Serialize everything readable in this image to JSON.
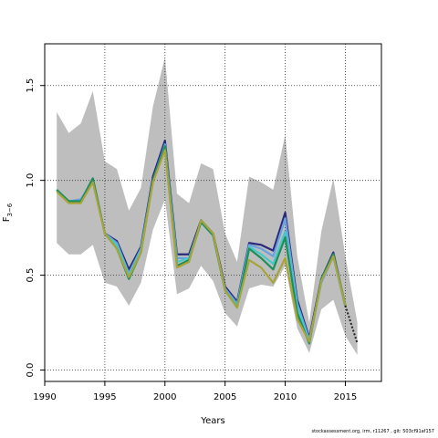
{
  "chart_data": {
    "type": "line",
    "title": "",
    "xlabel": "Years",
    "ylabel": "F",
    "ylabel_sub": "3−6",
    "xlim": [
      1990,
      2018
    ],
    "ylim": [
      -0.06,
      1.72
    ],
    "xticks": [
      1990,
      1995,
      2000,
      2005,
      2010,
      2015
    ],
    "yticks": [
      0.0,
      0.5,
      1.0,
      1.5
    ],
    "ytick_labels": [
      "0.0",
      "0.5",
      "1.0",
      "1.5"
    ],
    "grid": "dotted at 1995, 2000, 2005, 2010, 2015 and 0.0, 0.5, 1.0, 1.5",
    "confidence_band": {
      "x": [
        1991,
        1992,
        1993,
        1994,
        1995,
        1996,
        1997,
        1998,
        1999,
        2000,
        2001,
        2002,
        2003,
        2004,
        2005,
        2006,
        2007,
        2008,
        2009,
        2010,
        2011,
        2012,
        2013,
        2014,
        2015,
        2016
      ],
      "upper": [
        1.36,
        1.25,
        1.3,
        1.47,
        1.1,
        1.06,
        0.84,
        0.96,
        1.39,
        1.65,
        0.93,
        0.88,
        1.09,
        1.06,
        0.72,
        0.57,
        1.02,
        0.99,
        0.95,
        1.24,
        0.6,
        0.25,
        0.73,
        1.01,
        0.6,
        0.25
      ],
      "lower": [
        0.67,
        0.61,
        0.61,
        0.66,
        0.46,
        0.44,
        0.34,
        0.46,
        0.74,
        0.9,
        0.4,
        0.43,
        0.55,
        0.47,
        0.3,
        0.23,
        0.43,
        0.45,
        0.44,
        0.55,
        0.22,
        0.09,
        0.32,
        0.37,
        0.18,
        0.08
      ],
      "color": "#bebebe"
    },
    "series": [
      {
        "color": "#2b2a7a",
        "x": [
          1991,
          1992,
          1993,
          1994,
          1995,
          1996,
          1997,
          1998,
          1999,
          2000,
          2001,
          2002,
          2003,
          2004,
          2005,
          2006,
          2007,
          2008,
          2009,
          2010,
          2011,
          2012,
          2013,
          2014,
          2015
        ],
        "values": [
          0.95,
          0.89,
          0.89,
          1.01,
          0.72,
          0.68,
          0.53,
          0.65,
          1.02,
          1.21,
          0.61,
          0.61,
          0.79,
          0.72,
          0.44,
          0.36,
          0.67,
          0.66,
          0.63,
          0.83,
          0.37,
          0.17,
          0.48,
          0.62,
          0.34
        ]
      },
      {
        "color": "#6a9fe0",
        "x": [
          1991,
          1992,
          1993,
          1994,
          1995,
          1996,
          1997,
          1998,
          1999,
          2000,
          2001,
          2002,
          2003,
          2004,
          2005,
          2006,
          2007,
          2008,
          2009,
          2010,
          2011,
          2012,
          2013,
          2014,
          2015
        ],
        "values": [
          0.95,
          0.89,
          0.9,
          1.0,
          0.72,
          0.67,
          0.51,
          0.64,
          1.0,
          1.19,
          0.59,
          0.59,
          0.78,
          0.71,
          0.43,
          0.35,
          0.66,
          0.64,
          0.6,
          0.8,
          0.35,
          0.16,
          0.46,
          0.6,
          0.33
        ]
      },
      {
        "color": "#48c9c9",
        "x": [
          1991,
          1992,
          1993,
          1994,
          1995,
          1996,
          1997,
          1998,
          1999,
          2000,
          2001,
          2002,
          2003,
          2004,
          2005,
          2006,
          2007,
          2008,
          2009,
          2010,
          2011,
          2012,
          2013,
          2014,
          2015
        ],
        "values": [
          0.95,
          0.89,
          0.89,
          1.0,
          0.72,
          0.66,
          0.5,
          0.63,
          1.0,
          1.18,
          0.57,
          0.59,
          0.78,
          0.71,
          0.42,
          0.34,
          0.65,
          0.61,
          0.56,
          0.73,
          0.33,
          0.15,
          0.47,
          0.61,
          0.34
        ]
      },
      {
        "color": "#1e8e5a",
        "x": [
          1991,
          1992,
          1993,
          1994,
          1995,
          1996,
          1997,
          1998,
          1999,
          2000,
          2001,
          2002,
          2003,
          2004,
          2005,
          2006,
          2007,
          2008,
          2009,
          2010,
          2011,
          2012,
          2013,
          2014,
          2015
        ],
        "values": [
          0.95,
          0.89,
          0.89,
          1.01,
          0.72,
          0.64,
          0.48,
          0.62,
          1.0,
          1.18,
          0.55,
          0.58,
          0.78,
          0.71,
          0.42,
          0.33,
          0.64,
          0.59,
          0.53,
          0.7,
          0.3,
          0.14,
          0.48,
          0.61,
          0.34
        ]
      },
      {
        "color": "#a7a43a",
        "x": [
          1991,
          1992,
          1993,
          1994,
          1995,
          1996,
          1997,
          1998,
          1999,
          2000,
          2001,
          2002,
          2003,
          2004,
          2005,
          2006,
          2007,
          2008,
          2009,
          2010,
          2011,
          2012,
          2013,
          2014,
          2015
        ],
        "values": [
          0.94,
          0.88,
          0.88,
          0.99,
          0.72,
          0.64,
          0.49,
          0.62,
          0.99,
          1.16,
          0.54,
          0.57,
          0.79,
          0.72,
          0.42,
          0.33,
          0.58,
          0.54,
          0.46,
          0.59,
          0.27,
          0.15,
          0.47,
          0.6,
          0.34
        ]
      }
    ],
    "projection": {
      "x": [
        2015,
        2016
      ],
      "values": [
        0.34,
        0.14
      ],
      "color": "#222222",
      "style": "dotted"
    },
    "footnote": "stockassessment.org, irm, r11267 , git: 503cf91af157"
  }
}
